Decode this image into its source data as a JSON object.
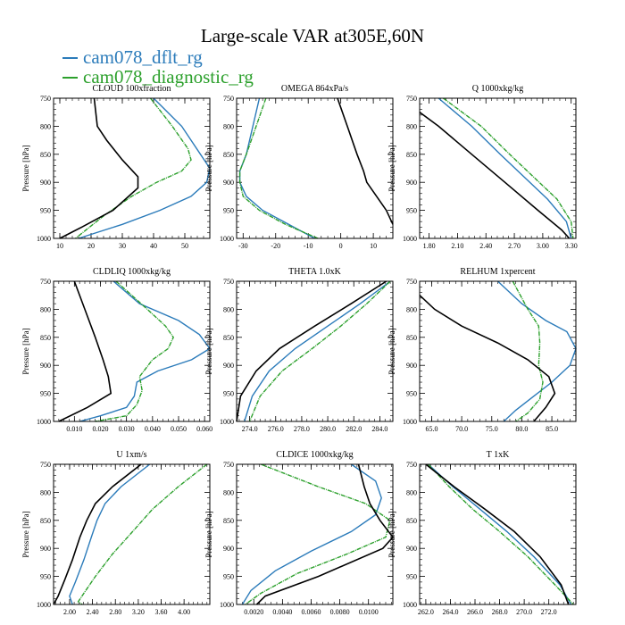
{
  "title": "Large-scale VAR at305E,60N",
  "legend": [
    {
      "name": "cam078_dflt_rg",
      "color": "#2b7bba"
    },
    {
      "name": "cam078_diagnostic_rg",
      "color": "#2ca02c"
    }
  ],
  "series_colors": {
    "dflt": "#2b7bba",
    "diag": "#2ca02c",
    "ref": "#000000"
  },
  "chart_data": [
    {
      "type": "line",
      "title": "CLOUD 100xfraction",
      "ylabel": "Pressure [hPa]",
      "xlim": [
        8,
        58
      ],
      "ylim": [
        1000,
        750
      ],
      "xticks": [
        "10",
        "20",
        "30",
        "40",
        "50"
      ],
      "xtick_values": [
        10,
        20,
        30,
        40,
        50
      ],
      "yticks": [
        "750",
        "800",
        "850",
        "900",
        "950",
        "1000"
      ],
      "series": [
        {
          "name": "cam078_dflt_rg",
          "x": [
            40,
            49,
            55,
            58,
            57,
            52,
            42,
            30,
            16
          ],
          "y": [
            750,
            800,
            850,
            875,
            900,
            925,
            950,
            975,
            1000
          ]
        },
        {
          "name": "cam078_diagnostic_rg",
          "x": [
            39,
            46,
            51,
            52,
            49,
            41,
            33,
            24,
            15
          ],
          "y": [
            750,
            800,
            840,
            860,
            880,
            900,
            925,
            960,
            1000
          ]
        },
        {
          "x": [
            21,
            22,
            25,
            30,
            35,
            35,
            27,
            17,
            10
          ],
          "y": [
            750,
            800,
            825,
            860,
            890,
            910,
            950,
            980,
            1000
          ]
        }
      ]
    },
    {
      "type": "line",
      "title": "OMEGA 864xPa/s",
      "ylabel": "Pressure [hPa]",
      "xlim": [
        -32,
        16
      ],
      "ylim": [
        1000,
        750
      ],
      "xticks": [
        "-30",
        "-20",
        "-10",
        "0",
        "10"
      ],
      "xtick_values": [
        -30,
        -20,
        -10,
        0,
        10
      ],
      "yticks": [
        "750",
        "800",
        "850",
        "900",
        "950",
        "1000"
      ],
      "series": [
        {
          "name": "cam078_dflt_rg",
          "x": [
            -25,
            -27,
            -29,
            -31,
            -31,
            -29,
            -24,
            -16,
            -8
          ],
          "y": [
            750,
            800,
            850,
            880,
            900,
            925,
            950,
            975,
            1000
          ]
        },
        {
          "name": "cam078_diagnostic_rg",
          "x": [
            -23,
            -26,
            -29,
            -31,
            -31,
            -30,
            -25,
            -17,
            -7
          ],
          "y": [
            750,
            800,
            850,
            880,
            900,
            925,
            950,
            975,
            1000
          ]
        },
        {
          "x": [
            -1,
            2,
            5,
            7,
            8,
            11,
            14,
            16
          ],
          "y": [
            750,
            800,
            850,
            880,
            900,
            925,
            950,
            975
          ]
        }
      ]
    },
    {
      "type": "line",
      "title": "Q 1000xkg/kg",
      "ylabel": "Pressure [hPa]",
      "xlim": [
        1.7,
        3.35
      ],
      "ylim": [
        1000,
        750
      ],
      "xticks": [
        "1.80",
        "2.10",
        "2.40",
        "2.70",
        "3.00",
        "3.30"
      ],
      "xtick_values": [
        1.8,
        2.1,
        2.4,
        2.7,
        3.0,
        3.3
      ],
      "yticks": [
        "750",
        "800",
        "850",
        "900",
        "950",
        "1000"
      ],
      "series": [
        {
          "name": "cam078_dflt_rg",
          "x": [
            1.9,
            2.25,
            2.55,
            2.8,
            3.05,
            3.25,
            3.3
          ],
          "y": [
            750,
            800,
            850,
            890,
            930,
            970,
            1000
          ]
        },
        {
          "name": "cam078_diagnostic_rg",
          "x": [
            1.95,
            2.35,
            2.65,
            2.9,
            3.15,
            3.3,
            3.32
          ],
          "y": [
            750,
            800,
            850,
            890,
            930,
            970,
            1000
          ]
        },
        {
          "x": [
            1.7,
            1.9,
            2.25,
            2.6,
            2.95,
            3.2,
            3.28
          ],
          "y": [
            775,
            800,
            850,
            900,
            950,
            985,
            1000
          ]
        }
      ]
    },
    {
      "type": "line",
      "title": "CLDLIQ 1000xkg/kg",
      "ylabel": "Pressure [hPa]",
      "xlim": [
        0.002,
        0.062
      ],
      "ylim": [
        1000,
        750
      ],
      "xticks": [
        "0.010",
        "0.020",
        "0.030",
        "0.040",
        "0.050",
        "0.060"
      ],
      "xtick_values": [
        0.01,
        0.02,
        0.03,
        0.04,
        0.05,
        0.06
      ],
      "yticks": [
        "750",
        "800",
        "850",
        "900",
        "950",
        "1000"
      ],
      "series": [
        {
          "name": "cam078_dflt_rg",
          "x": [
            0.025,
            0.035,
            0.05,
            0.058,
            0.062,
            0.055,
            0.042,
            0.034,
            0.033,
            0.03,
            0.02,
            0.012
          ],
          "y": [
            750,
            790,
            820,
            845,
            870,
            890,
            910,
            930,
            955,
            975,
            990,
            1000
          ]
        },
        {
          "name": "cam078_diagnostic_rg",
          "x": [
            0.026,
            0.038,
            0.045,
            0.048,
            0.046,
            0.04,
            0.035,
            0.036,
            0.034,
            0.03,
            0.018
          ],
          "y": [
            750,
            800,
            830,
            850,
            870,
            890,
            920,
            945,
            970,
            990,
            1000
          ]
        },
        {
          "x": [
            0.01,
            0.014,
            0.018,
            0.021,
            0.023,
            0.024,
            0.015,
            0.004
          ],
          "y": [
            750,
            800,
            850,
            890,
            920,
            950,
            975,
            1000
          ]
        }
      ]
    },
    {
      "type": "line",
      "title": "THETA 1.0xK",
      "ylabel": "Pressure [hPa]",
      "xlim": [
        273.0,
        285.0
      ],
      "ylim": [
        1000,
        750
      ],
      "xticks": [
        "274.0",
        "276.0",
        "278.0",
        "280.0",
        "282.0",
        "284.0"
      ],
      "xtick_values": [
        274,
        276,
        278,
        280,
        282,
        284
      ],
      "yticks": [
        "750",
        "800",
        "850",
        "900",
        "950",
        "1000"
      ],
      "series": [
        {
          "name": "cam078_dflt_rg",
          "x": [
            284.8,
            282.5,
            280.0,
            277.5,
            275.5,
            274.2,
            273.6
          ],
          "y": [
            750,
            790,
            830,
            870,
            910,
            955,
            1000
          ]
        },
        {
          "name": "cam078_diagnostic_rg",
          "x": [
            284.8,
            283.0,
            281.0,
            278.8,
            276.5,
            274.8,
            274.0
          ],
          "y": [
            750,
            790,
            830,
            870,
            910,
            955,
            1000
          ]
        },
        {
          "x": [
            284.5,
            281.8,
            279.0,
            276.3,
            274.5,
            273.3,
            273.0
          ],
          "y": [
            750,
            790,
            830,
            870,
            910,
            955,
            1000
          ]
        }
      ]
    },
    {
      "type": "line",
      "title": "RELHUM 1xpercent",
      "ylabel": "Pressure [hPa]",
      "xlim": [
        63.0,
        89.0
      ],
      "ylim": [
        1000,
        750
      ],
      "xticks": [
        "65.0",
        "70.0",
        "75.0",
        "80.0",
        "85.0"
      ],
      "xtick_values": [
        65,
        70,
        75,
        80,
        85
      ],
      "yticks": [
        "750",
        "800",
        "850",
        "900",
        "950",
        "1000"
      ],
      "series": [
        {
          "name": "cam078_dflt_rg",
          "x": [
            76.0,
            80.0,
            84.0,
            87.5,
            89.0,
            88.0,
            85.0,
            82.0,
            79.0,
            77.0
          ],
          "y": [
            750,
            790,
            820,
            840,
            870,
            900,
            930,
            955,
            980,
            1000
          ]
        },
        {
          "name": "cam078_diagnostic_rg",
          "x": [
            78.5,
            81.0,
            82.8,
            83.0,
            82.8,
            83.5,
            83.0,
            81.0,
            79.0
          ],
          "y": [
            750,
            800,
            830,
            860,
            900,
            930,
            960,
            985,
            1000
          ]
        },
        {
          "x": [
            63.0,
            65.5,
            70.0,
            76.0,
            81.0,
            84.5,
            85.5,
            84.0,
            82.0
          ],
          "y": [
            775,
            800,
            830,
            860,
            890,
            920,
            950,
            975,
            1000
          ]
        }
      ]
    },
    {
      "type": "line",
      "title": "U 1xm/s",
      "ylabel": "Pressure [hPa]",
      "xlim": [
        1.72,
        4.45
      ],
      "ylim": [
        1000,
        750
      ],
      "xticks": [
        "2.00",
        "2.40",
        "2.80",
        "3.20",
        "3.60",
        "4.00"
      ],
      "xtick_values": [
        2.0,
        2.4,
        2.8,
        3.2,
        3.6,
        4.0
      ],
      "yticks": [
        "750",
        "800",
        "850",
        "900",
        "950",
        "1000"
      ],
      "series": [
        {
          "name": "cam078_dflt_rg",
          "x": [
            3.4,
            2.9,
            2.62,
            2.48,
            2.38,
            2.25,
            2.1,
            2.0,
            2.05
          ],
          "y": [
            750,
            790,
            820,
            850,
            880,
            920,
            960,
            985,
            1000
          ]
        },
        {
          "name": "cam078_diagnostic_rg",
          "x": [
            4.4,
            3.9,
            3.45,
            3.1,
            2.75,
            2.45,
            2.25,
            2.15,
            2.22
          ],
          "y": [
            750,
            790,
            830,
            870,
            910,
            950,
            980,
            995,
            1000
          ]
        },
        {
          "x": [
            3.25,
            2.75,
            2.45,
            2.3,
            2.18,
            2.05,
            1.92,
            1.8,
            1.72
          ],
          "y": [
            750,
            790,
            820,
            850,
            880,
            920,
            955,
            985,
            1000
          ]
        }
      ]
    },
    {
      "type": "line",
      "title": "CLDICE 1000xkg/kg",
      "ylabel": "Pressure [hPa]",
      "xlim": [
        0.0008,
        0.0117
      ],
      "ylim": [
        1000,
        750
      ],
      "xticks": [
        "0.0020",
        "0.0040",
        "0.0060",
        "0.0080",
        "0.0100"
      ],
      "xtick_values": [
        0.002,
        0.004,
        0.006,
        0.008,
        0.01
      ],
      "yticks": [
        "750",
        "800",
        "850",
        "900",
        "950",
        "1000"
      ],
      "series": [
        {
          "name": "cam078_dflt_rg",
          "x": [
            0.0088,
            0.0105,
            0.0109,
            0.0105,
            0.0088,
            0.006,
            0.0035,
            0.0018,
            0.0012
          ],
          "y": [
            750,
            780,
            810,
            840,
            870,
            905,
            940,
            975,
            1000
          ]
        },
        {
          "name": "cam078_diagnostic_rg",
          "x": [
            0.0025,
            0.0065,
            0.0098,
            0.0115,
            0.0112,
            0.0085,
            0.005,
            0.0025,
            0.0014
          ],
          "y": [
            750,
            790,
            820,
            850,
            880,
            910,
            945,
            980,
            1000
          ]
        },
        {
          "x": [
            0.0093,
            0.0097,
            0.0101,
            0.0108,
            0.0117,
            0.011,
            0.0065,
            0.0028,
            0.0022
          ],
          "y": [
            750,
            790,
            820,
            850,
            880,
            900,
            950,
            985,
            1000
          ]
        }
      ]
    },
    {
      "type": "line",
      "title": "T 1xK",
      "ylabel": "Pressure [hPa]",
      "xlim": [
        261.5,
        274.2
      ],
      "ylim": [
        1000,
        750
      ],
      "xticks": [
        "262.0",
        "264.0",
        "266.0",
        "268.0",
        "270.0",
        "272.0"
      ],
      "xtick_values": [
        262,
        264,
        266,
        268,
        270,
        272
      ],
      "yticks": [
        "750",
        "800",
        "850",
        "900",
        "950",
        "1000"
      ],
      "series": [
        {
          "name": "cam078_dflt_rg",
          "x": [
            262.2,
            264.2,
            266.4,
            268.6,
            270.8,
            272.9,
            273.8
          ],
          "y": [
            750,
            790,
            830,
            870,
            915,
            965,
            1000
          ]
        },
        {
          "name": "cam078_diagnostic_rg",
          "x": [
            262.2,
            263.9,
            265.8,
            268.0,
            270.3,
            272.5,
            274.0
          ],
          "y": [
            750,
            790,
            830,
            870,
            915,
            965,
            1000
          ]
        },
        {
          "x": [
            262.0,
            264.3,
            266.8,
            269.2,
            271.3,
            273.0,
            273.6
          ],
          "y": [
            750,
            790,
            830,
            870,
            915,
            965,
            1000
          ]
        }
      ]
    }
  ]
}
